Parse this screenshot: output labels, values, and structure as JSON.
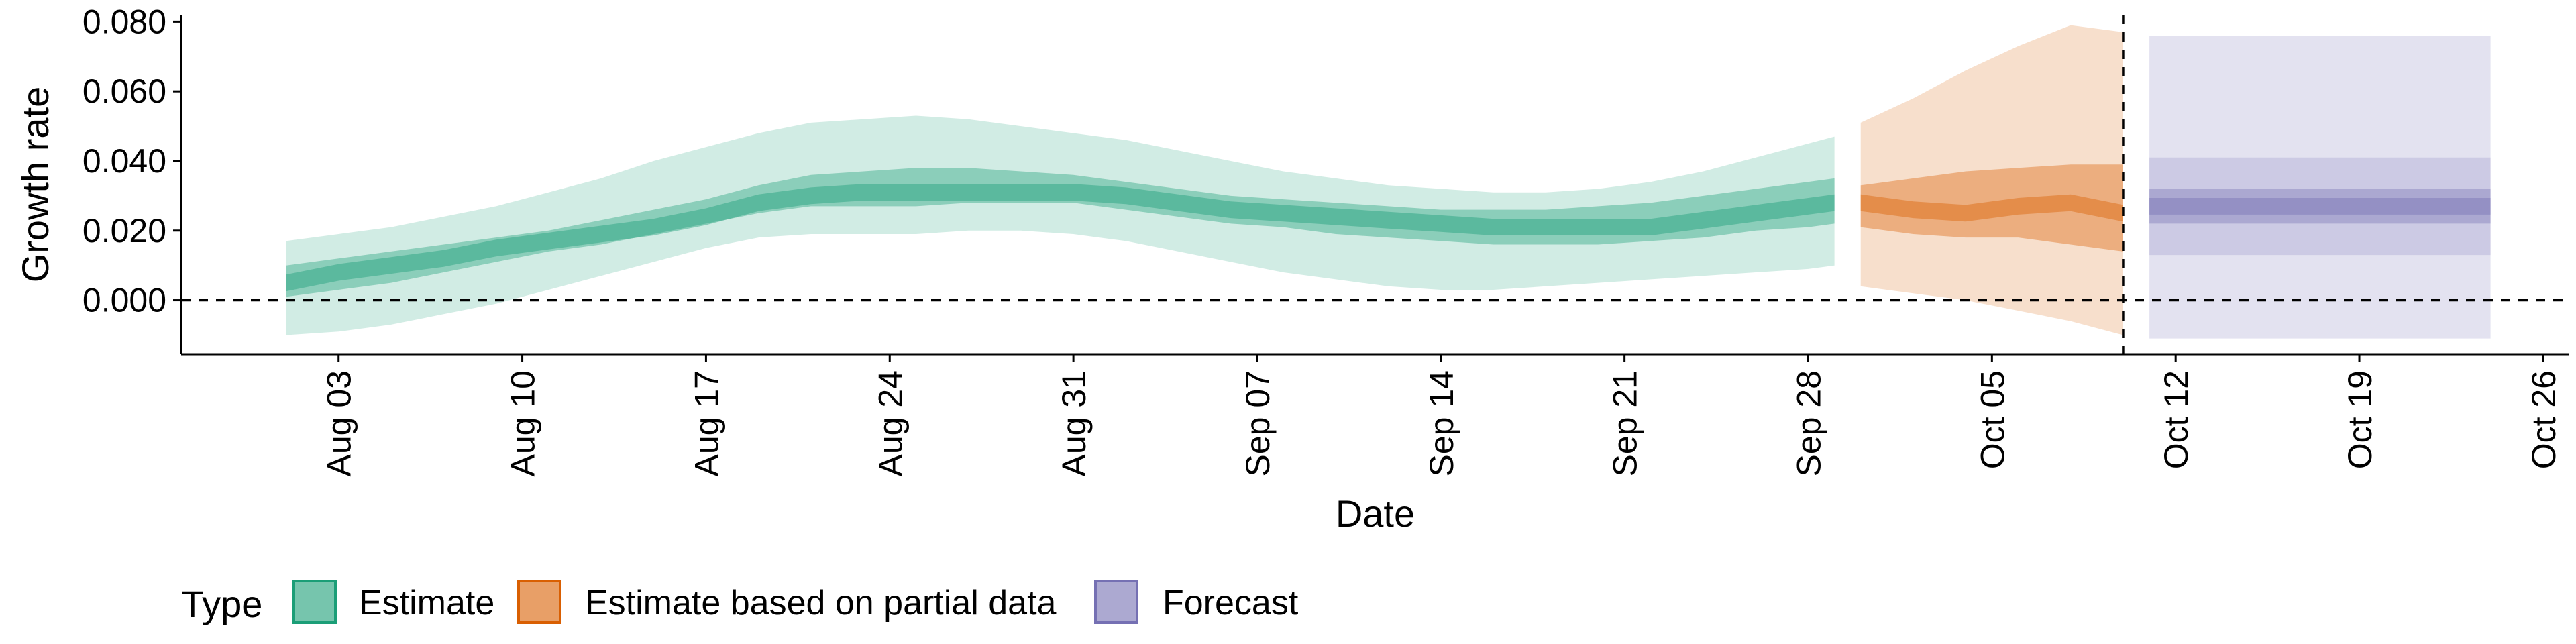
{
  "chart_data": {
    "type": "area",
    "xlabel": "Date",
    "ylabel": "Growth rate",
    "x_range": [
      "2020-07-28",
      "2020-10-27"
    ],
    "ylim": [
      -0.0155,
      0.082
    ],
    "x_ticks": [
      "2020-08-03",
      "2020-08-10",
      "2020-08-17",
      "2020-08-24",
      "2020-08-31",
      "2020-09-07",
      "2020-09-14",
      "2020-09-21",
      "2020-09-28",
      "2020-10-05",
      "2020-10-12",
      "2020-10-19",
      "2020-10-26"
    ],
    "x_tick_labels": [
      "Aug 03",
      "Aug 10",
      "Aug 17",
      "Aug 24",
      "Aug 31",
      "Sep 07",
      "Sep 14",
      "Sep 21",
      "Sep 28",
      "Oct 05",
      "Oct 12",
      "Oct 19",
      "Oct 26"
    ],
    "y_ticks": [
      0,
      0.02,
      0.04,
      0.06,
      0.08
    ],
    "y_tick_labels": [
      "0.000",
      "0.020",
      "0.040",
      "0.060",
      "0.080"
    ],
    "reference_lines": {
      "y": 0,
      "x": "2020-10-10"
    },
    "grid": false,
    "legend": {
      "title": "Type",
      "position": "bottom-left",
      "items": [
        {
          "label": "Estimate",
          "color": "#1b9e77"
        },
        {
          "label": "Estimate based on partial data",
          "color": "#d95f02"
        },
        {
          "label": "Forecast",
          "color": "#7570b3"
        }
      ]
    },
    "series": [
      {
        "name": "Estimate",
        "color": "#1b9e77",
        "x": [
          "2020-08-01",
          "2020-08-03",
          "2020-08-05",
          "2020-08-07",
          "2020-08-09",
          "2020-08-11",
          "2020-08-13",
          "2020-08-15",
          "2020-08-17",
          "2020-08-19",
          "2020-08-21",
          "2020-08-23",
          "2020-08-25",
          "2020-08-27",
          "2020-08-29",
          "2020-08-31",
          "2020-09-02",
          "2020-09-04",
          "2020-09-06",
          "2020-09-08",
          "2020-09-10",
          "2020-09-12",
          "2020-09-14",
          "2020-09-16",
          "2020-09-18",
          "2020-09-20",
          "2020-09-22",
          "2020-09-24",
          "2020-09-26",
          "2020-09-28",
          "2020-09-29"
        ],
        "median": [
          0.005,
          0.008,
          0.01,
          0.012,
          0.015,
          0.017,
          0.019,
          0.021,
          0.024,
          0.028,
          0.03,
          0.031,
          0.031,
          0.031,
          0.031,
          0.031,
          0.03,
          0.028,
          0.026,
          0.025,
          0.024,
          0.023,
          0.022,
          0.021,
          0.021,
          0.021,
          0.021,
          0.023,
          0.025,
          0.027,
          0.028
        ],
        "lower_50": [
          0.001,
          0.003,
          0.005,
          0.008,
          0.011,
          0.014,
          0.016,
          0.019,
          0.022,
          0.025,
          0.027,
          0.027,
          0.027,
          0.028,
          0.028,
          0.028,
          0.026,
          0.024,
          0.022,
          0.021,
          0.019,
          0.018,
          0.017,
          0.016,
          0.016,
          0.016,
          0.017,
          0.018,
          0.02,
          0.021,
          0.022
        ],
        "upper_50": [
          0.01,
          0.012,
          0.014,
          0.016,
          0.018,
          0.02,
          0.023,
          0.026,
          0.029,
          0.033,
          0.036,
          0.037,
          0.038,
          0.038,
          0.037,
          0.036,
          0.034,
          0.032,
          0.03,
          0.029,
          0.028,
          0.027,
          0.026,
          0.026,
          0.026,
          0.027,
          0.028,
          0.03,
          0.032,
          0.034,
          0.035
        ],
        "lower_90": [
          -0.01,
          -0.009,
          -0.007,
          -0.004,
          -0.001,
          0.003,
          0.007,
          0.011,
          0.015,
          0.018,
          0.019,
          0.019,
          0.019,
          0.02,
          0.02,
          0.019,
          0.017,
          0.014,
          0.011,
          0.008,
          0.006,
          0.004,
          0.003,
          0.003,
          0.004,
          0.005,
          0.006,
          0.007,
          0.008,
          0.009,
          0.01
        ],
        "upper_90": [
          0.017,
          0.019,
          0.021,
          0.024,
          0.027,
          0.031,
          0.035,
          0.04,
          0.044,
          0.048,
          0.051,
          0.052,
          0.053,
          0.052,
          0.05,
          0.048,
          0.046,
          0.043,
          0.04,
          0.037,
          0.035,
          0.033,
          0.032,
          0.031,
          0.031,
          0.032,
          0.034,
          0.037,
          0.041,
          0.045,
          0.047
        ]
      },
      {
        "name": "Estimate based on partial data",
        "color": "#d95f02",
        "x": [
          "2020-09-30",
          "2020-10-02",
          "2020-10-04",
          "2020-10-06",
          "2020-10-08",
          "2020-10-10"
        ],
        "median": [
          0.028,
          0.026,
          0.025,
          0.027,
          0.028,
          0.025
        ],
        "lower_50": [
          0.021,
          0.019,
          0.018,
          0.018,
          0.016,
          0.014
        ],
        "upper_50": [
          0.033,
          0.035,
          0.037,
          0.038,
          0.039,
          0.039
        ],
        "lower_90": [
          0.004,
          0.002,
          0.0,
          -0.003,
          -0.006,
          -0.01
        ],
        "upper_90": [
          0.051,
          0.058,
          0.066,
          0.073,
          0.079,
          0.077
        ]
      },
      {
        "name": "Forecast",
        "color": "#7570b3",
        "x": [
          "2020-10-11",
          "2020-10-24"
        ],
        "median": [
          0.027,
          0.027
        ],
        "lower_50": [
          0.022,
          0.022
        ],
        "upper_50": [
          0.032,
          0.032
        ],
        "lower_90": [
          0.013,
          0.013
        ],
        "upper_90": [
          0.041,
          0.041
        ],
        "lower_outer": [
          -0.011,
          -0.011
        ],
        "upper_outer": [
          0.076,
          0.076
        ]
      }
    ]
  }
}
